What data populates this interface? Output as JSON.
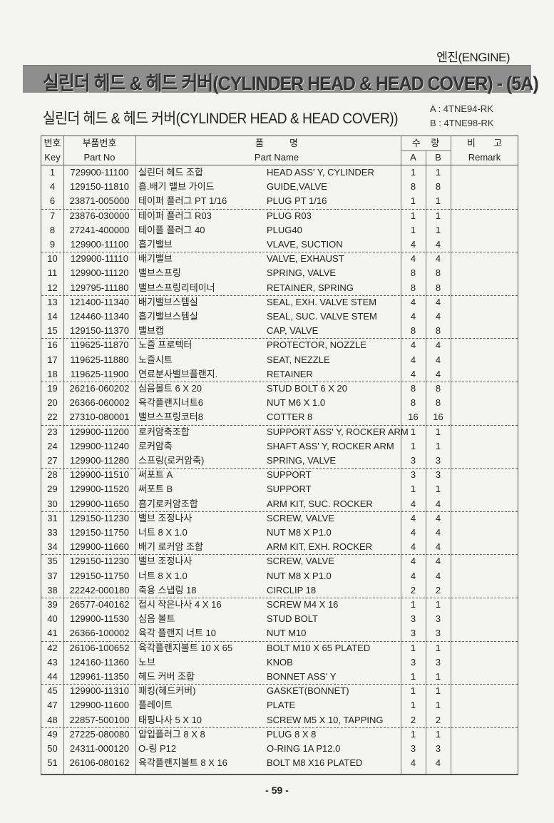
{
  "header": {
    "section": "엔진(ENGINE)",
    "banner_title": "실린더 헤드 & 헤드 커버(CYLINDER HEAD & HEAD COVER) - (5A)",
    "subtitle": "실린더 헤드 & 헤드 커버(CYLINDER HEAD & HEAD COVER))",
    "model_a": "A : 4TNE94-RK",
    "model_b": "B : 4TNE98-RK"
  },
  "table": {
    "headers": {
      "key_kr": "번호",
      "key_en": "Key",
      "partno_kr": "부품번호",
      "partno_en": "Part No",
      "name_kr": "품          명",
      "name_en": "Part Name",
      "qty_kr": "수    량",
      "qty_a": "A",
      "qty_b": "B",
      "remark_kr": "비       고",
      "remark_en": "Remark"
    },
    "rows": [
      [
        "1",
        "729900-11100",
        "실린더 헤드 조합",
        "HEAD ASS' Y, CYLINDER",
        "1",
        "1"
      ],
      [
        "4",
        "129150-11810",
        "흡.배기 밸브 가이드",
        "GUIDE,VALVE",
        "8",
        "8"
      ],
      [
        "6",
        "23871-005000",
        "테이퍼 플러그 PT 1/16",
        "PLUG PT 1/16",
        "1",
        "1"
      ],
      [
        "7",
        "23876-030000",
        "테이퍼 플러그 R03",
        "PLUG R03",
        "1",
        "1"
      ],
      [
        "8",
        "27241-400000",
        "테이플 플러그 40",
        "PLUG40",
        "1",
        "1"
      ],
      [
        "9",
        "129900-11100",
        "흡기밸브",
        "VLAVE, SUCTION",
        "4",
        "4"
      ],
      [
        "10",
        "129900-11110",
        "배기밸브",
        "VALVE, EXHAUST",
        "4",
        "4"
      ],
      [
        "11",
        "129900-11120",
        "밸브스프링",
        "SPRING, VALVE",
        "8",
        "8"
      ],
      [
        "12",
        "129795-11180",
        "밸브스프링리테이너",
        "RETAINER, SPRING",
        "8",
        "8"
      ],
      [
        "13",
        "121400-11340",
        "배기밸브스템실",
        "SEAL, EXH. VALVE STEM",
        "4",
        "4"
      ],
      [
        "14",
        "124460-11340",
        "흡기밸브스템실",
        "SEAL, SUC. VALVE STEM",
        "4",
        "4"
      ],
      [
        "15",
        "129150-11370",
        "밸브캡",
        "CAP, VALVE",
        "8",
        "8"
      ],
      [
        "16",
        "119625-11870",
        "노즐 프로텍터",
        "PROTECTOR, NOZZLE",
        "4",
        "4"
      ],
      [
        "17",
        "119625-11880",
        "노즐시트",
        "SEAT, NEZZLE",
        "4",
        "4"
      ],
      [
        "18",
        "119625-11900",
        "연료분사밸브플랜지.",
        "RETAINER",
        "4",
        "4"
      ],
      [
        "19",
        "26216-060202",
        "심음볼트 6 X 20",
        "STUD BOLT 6 X 20",
        "8",
        "8"
      ],
      [
        "20",
        "26366-060002",
        "육각플랜지너트6",
        "NUT M6 X 1.0",
        "8",
        "8"
      ],
      [
        "22",
        "27310-080001",
        "밸브스프링코터8",
        "COTTER 8",
        "16",
        "16"
      ],
      [
        "23",
        "129900-11200",
        "로커암축조합",
        "SUPPORT ASS' Y, ROCKER ARM",
        "1",
        "1"
      ],
      [
        "24",
        "129900-11240",
        "로커암축",
        "SHAFT ASS' Y, ROCKER ARM",
        "1",
        "1"
      ],
      [
        "27",
        "129900-11280",
        "스프링(로커암축)",
        "SPRING, VALVE",
        "3",
        "3"
      ],
      [
        "28",
        "129900-11510",
        "써포트 A",
        "SUPPORT",
        "3",
        "3"
      ],
      [
        "29",
        "129900-11520",
        "써포트 B",
        "SUPPORT",
        "1",
        "1"
      ],
      [
        "30",
        "129900-11650",
        "흡기로커암조합",
        "ARM KIT, SUC. ROCKER",
        "4",
        "4"
      ],
      [
        "31",
        "129150-11230",
        "밸브 조정나사",
        "SCREW, VALVE",
        "4",
        "4"
      ],
      [
        "33",
        "129150-11750",
        "너트 8 X 1.0",
        "NUT M8 X P1.0",
        "4",
        "4"
      ],
      [
        "34",
        "129900-11660",
        "배기 로커암 조합",
        "ARM KIT, EXH. ROCKER",
        "4",
        "4"
      ],
      [
        "35",
        "129150-11230",
        "밸브 조정나사",
        "SCREW, VALVE",
        "4",
        "4"
      ],
      [
        "37",
        "129150-11750",
        "너트 8 X 1.0",
        "NUT M8 X P1.0",
        "4",
        "4"
      ],
      [
        "38",
        "22242-000180",
        "축용 스냅링 18",
        "CIRCLIP 18",
        "2",
        "2"
      ],
      [
        "39",
        "26577-040162",
        "접시 작은나사 4 X 16",
        "SCREW M4 X 16",
        "1",
        "1"
      ],
      [
        "40",
        "129900-11530",
        "심음 볼트",
        "STUD BOLT",
        "3",
        "3"
      ],
      [
        "41",
        "26366-100002",
        "육각 플랜지 너트 10",
        "NUT M10",
        "3",
        "3"
      ],
      [
        "42",
        "26106-100652",
        "육각플랜지볼트 10 X 65",
        "BOLT M10 X 65 PLATED",
        "1",
        "1"
      ],
      [
        "43",
        "124160-11360",
        "노브",
        "KNOB",
        "3",
        "3"
      ],
      [
        "44",
        "129961-11350",
        "헤드 커버 조합",
        "BONNET ASS' Y",
        "1",
        "1"
      ],
      [
        "45",
        "129900-11310",
        "패킹(헤드커버)",
        "GASKET(BONNET)",
        "1",
        "1"
      ],
      [
        "47",
        "129900-11600",
        "플레이트",
        "PLATE",
        "1",
        "1"
      ],
      [
        "48",
        "22857-500100",
        "태핑나사 5 X 10",
        "SCREW M5 X 10, TAPPING",
        "2",
        "2"
      ],
      [
        "49",
        "27225-080080",
        "압입플러그 8 X 8",
        "PLUG 8 X 8",
        "1",
        "1"
      ],
      [
        "50",
        "24311-000120",
        "O-링 P12",
        "O-RING 1A P12.0",
        "3",
        "3"
      ],
      [
        "51",
        "26106-080162",
        "육각플랜지볼트 8 X 16",
        "BOLT M8 X16 PLATED",
        "4",
        "4"
      ]
    ]
  },
  "footer": {
    "page_number": "- 59 -"
  }
}
